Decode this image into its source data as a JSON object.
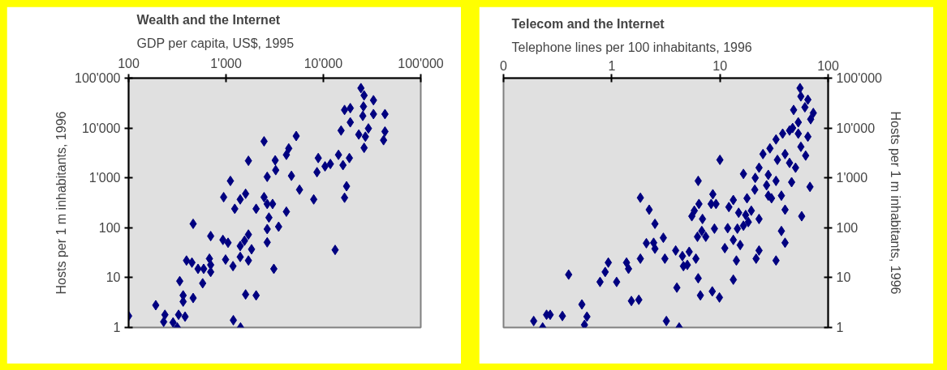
{
  "chart_data": [
    {
      "type": "scatter",
      "title": "Wealth and the Internet",
      "subtitle": "GDP per capita, US$, 1995",
      "ylabel": "Hosts per 1 m inhabitants, 1996",
      "log": "xy",
      "grid": false,
      "marker": "diamond",
      "xlim": [
        100,
        100000
      ],
      "ylim": [
        1,
        100000
      ],
      "xticks": [
        100,
        {
          "value": 1000,
          "label": "1'000"
        },
        {
          "value": 10000,
          "label": "10'000"
        },
        {
          "value": 100000,
          "label": "100'000"
        }
      ],
      "yticks": [
        1,
        10,
        100,
        {
          "value": 1000,
          "label": "1'000"
        },
        {
          "value": 10000,
          "label": "10'000"
        },
        {
          "value": 100000,
          "label": "100'000"
        }
      ],
      "series": [
        {
          "color": "#000080",
          "x": [
            100,
            190,
            236,
            229,
            286,
            316,
            326,
            380,
            335,
            363,
            363,
            460,
            460,
            393,
            447,
            516,
            576,
            590,
            676,
            696,
            696,
            696,
            946,
            1110,
            1230,
            1400,
            1590,
            1700,
            2040,
            2460,
            2650,
            3200,
            3240,
            2460,
            2650,
            3010,
            2760,
            3470,
            2650,
            2650,
            3100,
            930,
            1050,
            990,
            1180,
            1190,
            1410,
            1590,
            2040,
            1400,
            1550,
            1700,
            1830,
            1400,
            1700,
            4170,
            4170,
            4410,
            5260,
            4700,
            5690,
            7960,
            8860,
            8600,
            10400,
            11800,
            14300,
            15900,
            18500,
            17300,
            16500,
            13200,
            15200,
            16500,
            18900,
            18900,
            24300,
            26200,
            32700,
            25800,
            32700,
            42900,
            25400,
            23100,
            29000,
            27000,
            26200,
            42900,
            41500
          ],
          "values": [
            1.7,
            2.8,
            1.8,
            1.3,
            1.26,
            1,
            1.8,
            1.65,
            8.5,
            4.4,
            3.3,
            3.9,
            120,
            22,
            20,
            15,
            7.7,
            15,
            24,
            18,
            13,
            68,
            410,
            870,
            240,
            370,
            480,
            2200,
            240,
            5400,
            1050,
            2250,
            1430,
            410,
            300,
            300,
            160,
            105,
            94,
            51,
            15,
            57,
            50,
            23,
            17,
            1.4,
            1,
            4.6,
            4.4,
            43,
            55,
            73,
            37,
            26,
            22,
            210,
            2900,
            3900,
            6900,
            1100,
            580,
            370,
            2500,
            1300,
            1700,
            1900,
            2900,
            1800,
            2500,
            680,
            400,
            36,
            8900,
            23000,
            25000,
            13000,
            63000,
            45000,
            36000,
            27000,
            19000,
            19000,
            17500,
            7400,
            9800,
            6700,
            4000,
            8500,
            5700
          ]
        }
      ]
    },
    {
      "type": "scatter",
      "title": "Telecom and the Internet",
      "subtitle": "Telephone lines per 100 inhabitants, 1996",
      "ylabel": "Hosts per 1 m inhabitants, 1996",
      "log": "xy",
      "grid": false,
      "marker": "diamond",
      "xlim": [
        0.1,
        100
      ],
      "ylim": [
        1,
        100000
      ],
      "xticks": [
        {
          "value": 0.1,
          "label": "0"
        },
        1,
        10,
        100
      ],
      "yticks": [
        1,
        10,
        100,
        {
          "value": 1000,
          "label": "1'000"
        },
        {
          "value": 10000,
          "label": "10'000"
        },
        {
          "value": 100000,
          "label": "100'000"
        }
      ],
      "series": [
        {
          "color": "#000080",
          "x": [
            0.19,
            0.23,
            0.25,
            0.27,
            0.35,
            0.4,
            0.53,
            0.59,
            0.56,
            0.78,
            0.87,
            0.93,
            1.11,
            1.37,
            1.43,
            1.52,
            1.78,
            1.84,
            1.84,
            2.22,
            2.51,
            2.09,
            2.44,
            2.51,
            3.0,
            3.1,
            3.2,
            3.9,
            4.0,
            4.5,
            4.6,
            5.0,
            5.2,
            6.0,
            5.5,
            5.8,
            6.3,
            6.4,
            6.9,
            6.3,
            6.6,
            6.2,
            6.8,
            7.4,
            8.3,
            8.6,
            9.2,
            8.9,
            8.5,
            9.9,
            10,
            11.1,
            12.1,
            13.3,
            11.8,
            13.3,
            14.5,
            15.4,
            13.3,
            14.2,
            14.9,
            16.5,
            16.5,
            17.3,
            18.3,
            17.8,
            19.5,
            21,
            21.6,
            23,
            23,
            21.2,
            23,
            25,
            27,
            28,
            28,
            30,
            33,
            33,
            37,
            40,
            37,
            40,
            33,
            29,
            34,
            40,
            46,
            44,
            50,
            38,
            47,
            53,
            56,
            62,
            65,
            57,
            68,
            48,
            55,
            56,
            65,
            61,
            73,
            69,
            53,
            44,
            4.2
          ],
          "values": [
            1.35,
            1,
            1.8,
            1.8,
            1.7,
            11.5,
            2.9,
            1.65,
            1.13,
            8.2,
            13,
            20,
            8.2,
            20,
            15,
            3.4,
            3.6,
            24,
            400,
            230,
            120,
            49,
            50,
            38,
            63,
            24,
            1.35,
            35,
            6.3,
            27,
            17,
            18,
            33,
            24,
            170,
            220,
            870,
            300,
            150,
            9.7,
            4.4,
            66,
            86,
            66,
            300,
            470,
            300,
            96,
            5.3,
            4,
            2300,
            39,
            260,
            360,
            98,
            57,
            96,
            45,
            9.1,
            22,
            200,
            1200,
            110,
            180,
            130,
            390,
            220,
            580,
            24,
            150,
            35,
            1000,
            1600,
            3000,
            710,
            1150,
            440,
            390,
            22,
            870,
            440,
            230,
            86,
            50,
            5900,
            3900,
            2300,
            3000,
            820,
            2000,
            1600,
            7700,
            10000,
            7700,
            4200,
            2800,
            6700,
            170,
            660,
            23000,
            63000,
            43000,
            37000,
            26000,
            20000,
            15000,
            13000,
            8900,
            1
          ]
        }
      ]
    }
  ]
}
